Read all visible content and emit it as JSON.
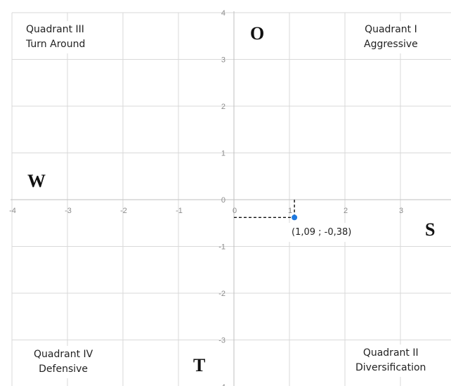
{
  "chart_data": {
    "type": "scatter",
    "xlim": [
      -4,
      4
    ],
    "ylim": [
      -4,
      4
    ],
    "x_ticks": [
      "-4",
      "-3",
      "-2",
      "-1",
      "0",
      "1",
      "2",
      "3"
    ],
    "y_ticks": [
      "4",
      "3",
      "2",
      "1",
      "0",
      "-1",
      "-2",
      "-3",
      "-4"
    ],
    "grid": true,
    "points": [
      {
        "x": 1.09,
        "y": -0.38,
        "label": "(1,09 ; -0,38)"
      }
    ],
    "point_color": "#1f7ae0",
    "annotations": {
      "quadrant_1": {
        "line1": "Quadrant I",
        "line2": "Aggressive"
      },
      "quadrant_2": {
        "line1": "Quadrant II",
        "line2": "Diversification"
      },
      "quadrant_3": {
        "line1": "Quadrant III",
        "line2": "Turn Around"
      },
      "quadrant_4": {
        "line1": "Quadrant IV",
        "line2": "Defensive"
      },
      "letters": {
        "top": "O",
        "left": "W",
        "right": "S",
        "bottom": "T"
      }
    }
  }
}
